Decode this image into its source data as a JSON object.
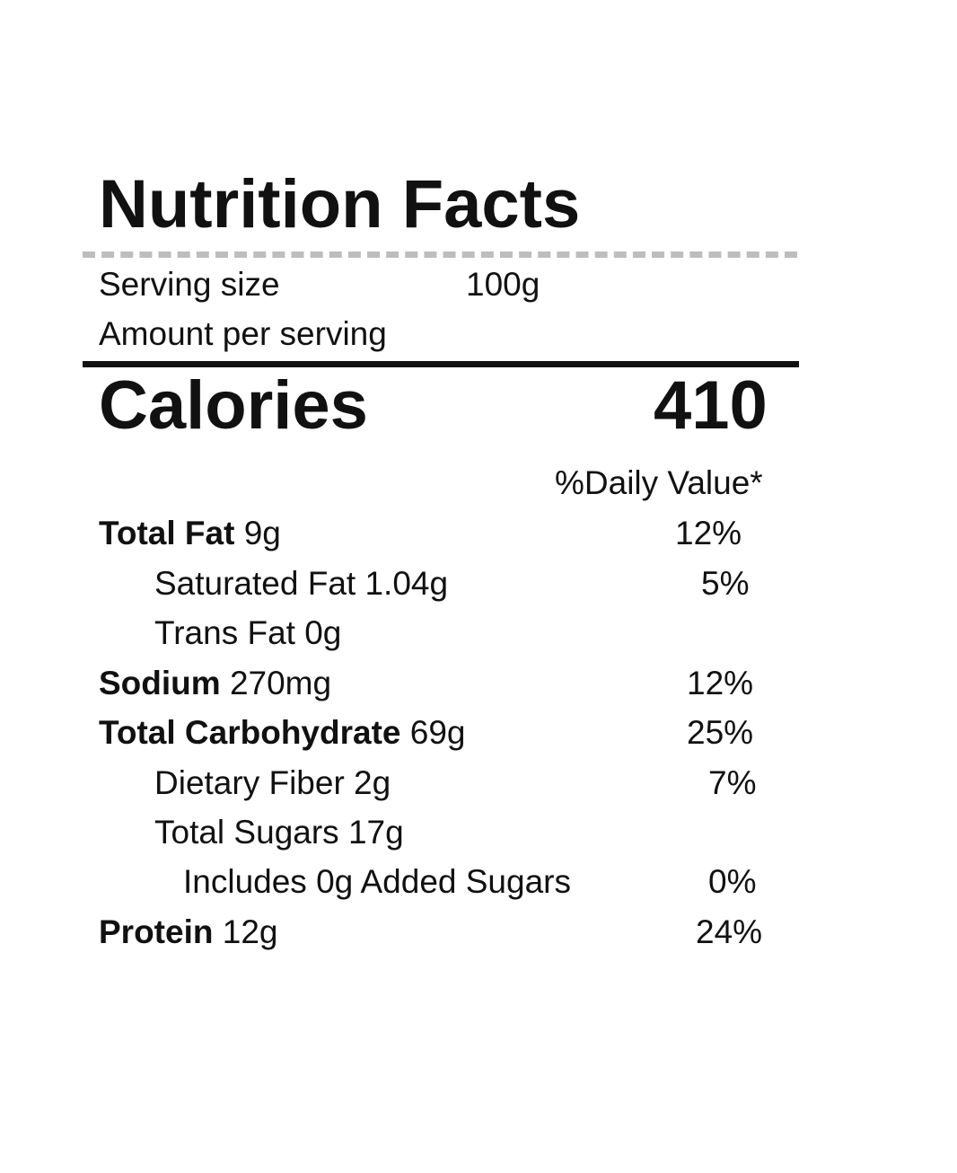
{
  "title": "Nutrition Facts",
  "serving": {
    "label": "Serving size",
    "value": "100g"
  },
  "amount_per_serving": "Amount per serving",
  "calories": {
    "label": "Calories",
    "value": "410"
  },
  "daily_value_header": "%Daily Value*",
  "nutrients": [
    {
      "name": "Total Fat",
      "amount": " 9g",
      "dv": "12%"
    },
    {
      "name": "Saturated Fat 1.04g",
      "amount": "",
      "dv": "5%"
    },
    {
      "name": "Trans Fat 0g",
      "amount": "",
      "dv": ""
    },
    {
      "name": "Sodium",
      "amount": " 270mg",
      "dv": "12%"
    },
    {
      "name": "Total Carbohydrate",
      "amount": " 69g",
      "dv": "25%"
    },
    {
      "name": "Dietary Fiber 2g",
      "amount": "",
      "dv": "7%"
    },
    {
      "name": "Total Sugars 17g",
      "amount": "",
      "dv": ""
    },
    {
      "name": "Includes 0g Added Sugars",
      "amount": "",
      "dv": "0%"
    },
    {
      "name": "Protein",
      "amount": " 12g",
      "dv": "24%"
    }
  ]
}
